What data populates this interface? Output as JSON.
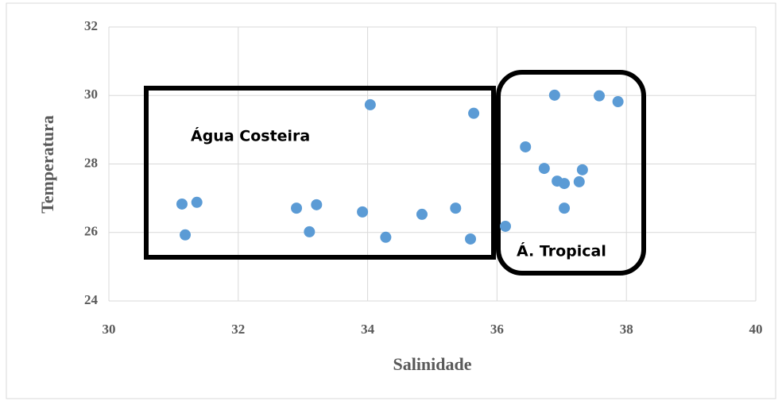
{
  "chart_data": {
    "type": "scatter",
    "x_label": "Salinidade",
    "y_label": "Temperatura",
    "xlim": [
      30,
      40
    ],
    "xticks": [
      30,
      32,
      34,
      36,
      38,
      40
    ],
    "ylim": [
      24,
      32
    ],
    "yticks": [
      24,
      26,
      28,
      30,
      32
    ],
    "grid": true,
    "color": "#5b9bd5",
    "x": [
      31.13,
      31.18,
      31.36,
      32.9,
      33.1,
      33.21,
      33.92,
      34.04,
      34.28,
      34.84,
      35.36,
      35.59,
      35.64,
      36.13,
      36.44,
      36.73,
      36.89,
      36.93,
      37.04,
      37.04,
      37.27,
      37.32,
      37.58,
      37.87
    ],
    "values": [
      26.83,
      25.93,
      26.88,
      26.71,
      26.02,
      26.81,
      26.6,
      29.73,
      25.86,
      26.53,
      26.71,
      25.81,
      29.48,
      26.18,
      28.5,
      27.87,
      30.01,
      27.5,
      27.43,
      26.71,
      27.48,
      27.83,
      29.99,
      29.82
    ],
    "annotations": [
      "Água Costeira",
      "Á. Tropical"
    ]
  }
}
